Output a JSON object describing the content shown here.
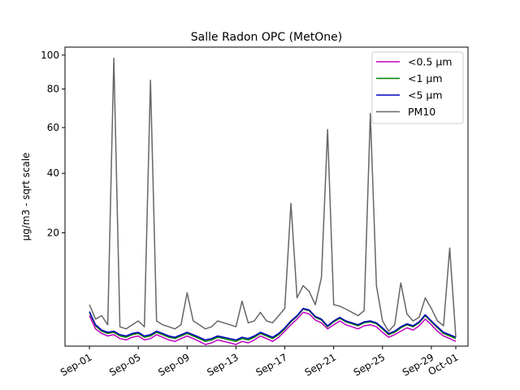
{
  "chart_data": {
    "type": "line",
    "title": "Salle Radon OPC (MetOne)",
    "xlabel": "",
    "ylabel": "µg/m3 - sqrt scale",
    "y_scale": "sqrt",
    "ylim": [
      0.9,
      105
    ],
    "xlim": [
      "2023-08-30",
      "2023-10-02"
    ],
    "grid": false,
    "legend_position": "top-right",
    "yticks": [
      20,
      40,
      60,
      80,
      100
    ],
    "xticks": [
      "Sep-01",
      "Sep-05",
      "Sep-09",
      "Sep-13",
      "Sep-17",
      "Sep-21",
      "Sep-25",
      "Sep-29",
      "Oct-01"
    ],
    "xtick_dates": [
      "2023-09-01",
      "2023-09-05",
      "2023-09-09",
      "2023-09-13",
      "2023-09-17",
      "2023-09-21",
      "2023-09-25",
      "2023-09-29",
      "2023-10-01"
    ],
    "x": [
      "2023-09-01",
      "2023-09-01T12:00",
      "2023-09-02",
      "2023-09-02T12:00",
      "2023-09-03",
      "2023-09-03T12:00",
      "2023-09-04",
      "2023-09-04T12:00",
      "2023-09-05",
      "2023-09-05T12:00",
      "2023-09-06",
      "2023-09-06T12:00",
      "2023-09-07",
      "2023-09-07T12:00",
      "2023-09-08",
      "2023-09-08T12:00",
      "2023-09-09",
      "2023-09-09T12:00",
      "2023-09-10",
      "2023-09-10T12:00",
      "2023-09-11",
      "2023-09-11T12:00",
      "2023-09-12",
      "2023-09-12T12:00",
      "2023-09-13",
      "2023-09-13T12:00",
      "2023-09-14",
      "2023-09-14T12:00",
      "2023-09-15",
      "2023-09-15T12:00",
      "2023-09-16",
      "2023-09-16T12:00",
      "2023-09-17",
      "2023-09-17T12:00",
      "2023-09-18",
      "2023-09-18T12:00",
      "2023-09-19",
      "2023-09-19T12:00",
      "2023-09-20",
      "2023-09-20T12:00",
      "2023-09-21",
      "2023-09-21T12:00",
      "2023-09-22",
      "2023-09-22T12:00",
      "2023-09-23",
      "2023-09-23T12:00",
      "2023-09-24",
      "2023-09-24T12:00",
      "2023-09-25",
      "2023-09-25T12:00",
      "2023-09-26",
      "2023-09-26T12:00",
      "2023-09-27",
      "2023-09-27T12:00",
      "2023-09-28",
      "2023-09-28T12:00",
      "2023-09-29",
      "2023-09-29T12:00",
      "2023-09-30",
      "2023-09-30T12:00",
      "2023-10-01"
    ],
    "series": [
      {
        "name": "<0.5 µm",
        "color": "#bf00bf",
        "values": [
          3.6,
          2.2,
          1.8,
          1.6,
          1.7,
          1.4,
          1.3,
          1.5,
          1.6,
          1.3,
          1.4,
          1.7,
          1.5,
          1.3,
          1.2,
          1.4,
          1.6,
          1.4,
          1.2,
          1.0,
          1.1,
          1.3,
          1.2,
          1.1,
          1.0,
          1.2,
          1.1,
          1.3,
          1.6,
          1.4,
          1.2,
          1.5,
          2.0,
          2.6,
          3.2,
          4.0,
          3.8,
          3.1,
          2.8,
          2.2,
          2.6,
          3.0,
          2.6,
          2.4,
          2.2,
          2.5,
          2.6,
          2.4,
          1.9,
          1.5,
          1.7,
          2.0,
          2.3,
          2.1,
          2.5,
          3.2,
          2.6,
          2.0,
          1.6,
          1.4,
          1.2
        ]
      },
      {
        "name": "<1 µm",
        "color": "#008000",
        "values": [
          4.0,
          2.5,
          2.0,
          1.8,
          1.9,
          1.6,
          1.5,
          1.7,
          1.8,
          1.5,
          1.6,
          1.9,
          1.7,
          1.5,
          1.4,
          1.6,
          1.8,
          1.6,
          1.4,
          1.2,
          1.3,
          1.5,
          1.4,
          1.3,
          1.2,
          1.4,
          1.3,
          1.5,
          1.8,
          1.6,
          1.4,
          1.7,
          2.2,
          2.9,
          3.5,
          4.4,
          4.2,
          3.4,
          3.1,
          2.4,
          2.9,
          3.3,
          2.9,
          2.7,
          2.5,
          2.8,
          2.9,
          2.7,
          2.2,
          1.7,
          1.9,
          2.3,
          2.6,
          2.4,
          2.8,
          3.6,
          2.9,
          2.3,
          1.8,
          1.6,
          1.4
        ]
      },
      {
        "name": "<5 µm",
        "color": "#0000bf",
        "values": [
          4.1,
          2.6,
          2.1,
          1.9,
          2.0,
          1.7,
          1.6,
          1.8,
          1.9,
          1.6,
          1.7,
          2.0,
          1.8,
          1.6,
          1.5,
          1.7,
          1.9,
          1.7,
          1.5,
          1.3,
          1.4,
          1.6,
          1.5,
          1.4,
          1.3,
          1.5,
          1.4,
          1.6,
          1.9,
          1.7,
          1.5,
          1.8,
          2.3,
          3.0,
          3.6,
          4.5,
          4.3,
          3.5,
          3.2,
          2.5,
          3.0,
          3.4,
          3.0,
          2.8,
          2.6,
          2.9,
          3.0,
          2.8,
          2.3,
          1.8,
          2.0,
          2.4,
          2.7,
          2.5,
          2.9,
          3.7,
          3.0,
          2.4,
          1.9,
          1.7,
          1.5
        ]
      },
      {
        "name": "PM10",
        "color": "#666666",
        "values": [
          5.0,
          3.2,
          3.6,
          2.6,
          98,
          2.4,
          2.2,
          2.6,
          3.0,
          2.4,
          85,
          3.0,
          2.6,
          2.4,
          2.2,
          2.6,
          6.8,
          3.0,
          2.6,
          2.2,
          2.4,
          3.0,
          2.8,
          2.6,
          2.4,
          5.5,
          2.8,
          3.0,
          4.0,
          3.0,
          2.8,
          3.6,
          4.5,
          29,
          6.0,
          8.0,
          7.0,
          5.0,
          9.5,
          59,
          5.0,
          4.8,
          4.4,
          4.0,
          3.6,
          4.2,
          67,
          8.0,
          3.0,
          2.0,
          2.6,
          8.5,
          3.8,
          3.0,
          3.4,
          6.0,
          4.5,
          3.0,
          2.5,
          16,
          1.5
        ]
      }
    ]
  }
}
